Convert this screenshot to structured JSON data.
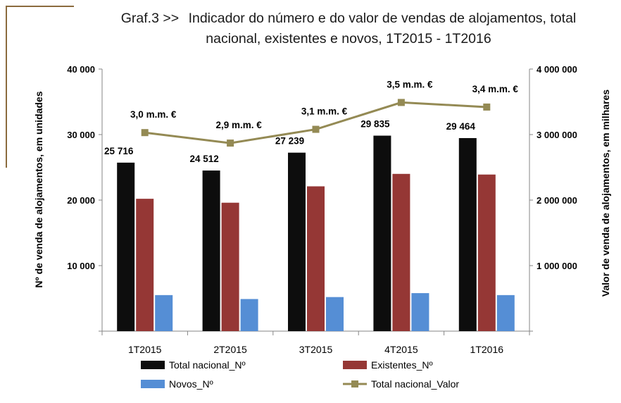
{
  "colors": {
    "total": "#0d0d0d",
    "existentes": "#953735",
    "novos": "#558ed5",
    "valor": "#948a54",
    "axis": "#868686",
    "frame": "#8b6b3e"
  },
  "chart_data": {
    "type": "bar",
    "title_prefix": "Graf.3  >>",
    "title_line1": "Indicador do número e do valor de vendas de alojamentos, total",
    "title_line2": "nacional, existentes e novos, 1T2015 - 1T2016",
    "categories": [
      "1T2015",
      "2T2015",
      "3T2015",
      "4T2015",
      "1T2016"
    ],
    "ylabel": "Nº  de venda de alojamentos, em unidades",
    "y2label": "Valor de venda de alojamentos, em milhares",
    "ylim": [
      0,
      40000
    ],
    "y2lim": [
      0,
      4000000
    ],
    "yticks": [
      "40 000",
      "30 000",
      "20 000",
      "10 000"
    ],
    "y2ticks": [
      "4 000 000",
      "3 000 000",
      "2 000 000",
      "1 000 000"
    ],
    "grid": false,
    "legend_position": "bottom",
    "series": [
      {
        "name": "Total nacional_Nº",
        "type": "bar",
        "axis": "left",
        "values": [
          25716,
          24512,
          27239,
          29835,
          29464
        ],
        "labels": [
          "25 716",
          "24 512",
          "27 239",
          "29 835",
          "29 464"
        ]
      },
      {
        "name": "Existentes_Nº",
        "type": "bar",
        "axis": "left",
        "values": [
          20200,
          19600,
          22100,
          24000,
          23900
        ]
      },
      {
        "name": "Novos_Nº",
        "type": "bar",
        "axis": "left",
        "values": [
          5500,
          4900,
          5200,
          5800,
          5500
        ]
      },
      {
        "name": "Total nacional_Valor",
        "type": "line",
        "axis": "right",
        "values": [
          3030000,
          2870000,
          3080000,
          3490000,
          3420000
        ],
        "labels": [
          "3,0 m.m. €",
          "2,9 m.m. €",
          "3,1 m.m. €",
          "3,5 m.m. €",
          "3,4 m.m. €"
        ]
      }
    ]
  }
}
